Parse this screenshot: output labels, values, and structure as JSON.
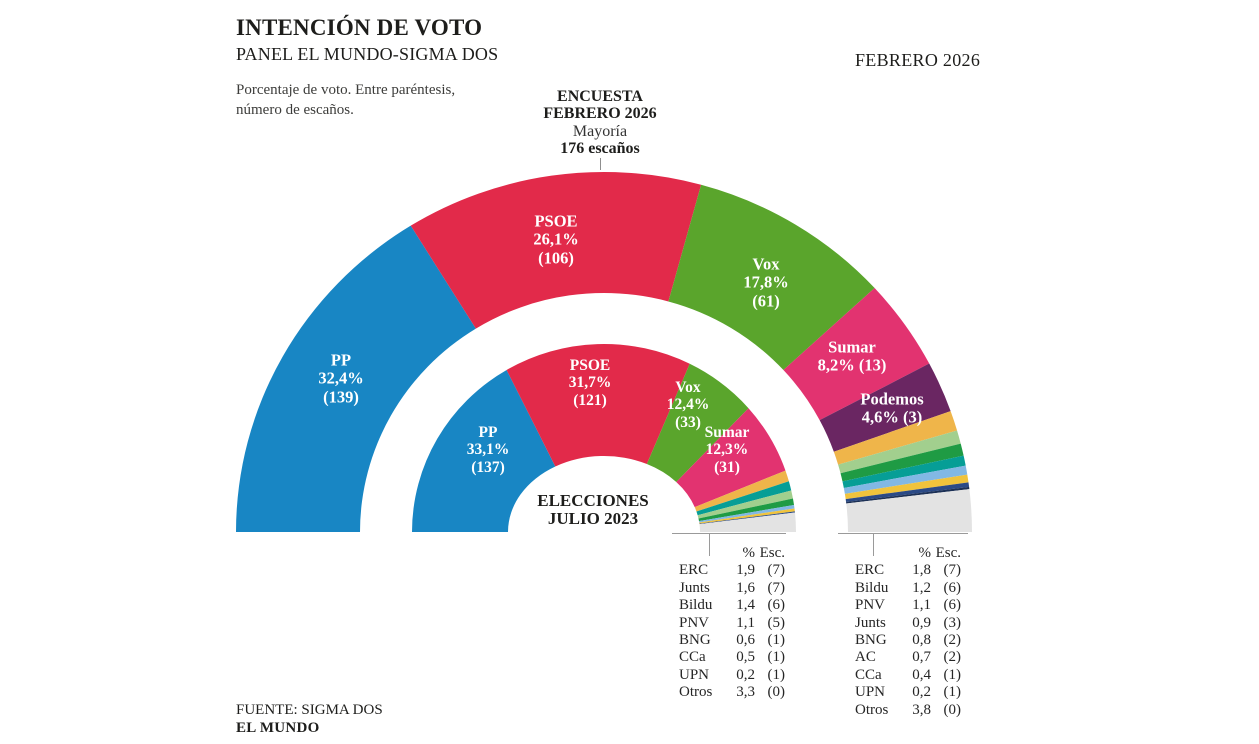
{
  "header": {
    "title": "INTENCIÓN DE VOTO",
    "subtitle": "PANEL EL MUNDO-SIGMA DOS",
    "date_label": "FEBRERO 2026",
    "note_line1": "Porcentaje de voto. Entre paréntesis,",
    "note_line2": "número de escaños."
  },
  "annotations": {
    "encuesta_line1": "ENCUESTA",
    "encuesta_line2": "FEBRERO 2026",
    "mayoria": "Mayoría",
    "escanos": "176 escaños",
    "elecciones_line1": "ELECCIONES",
    "elecciones_line2": "JULIO 2023"
  },
  "footer": {
    "source": "FUENTE: SIGMA DOS",
    "brand": "EL MUNDO"
  },
  "chart_data": {
    "type": "hemicycle-donut",
    "orientation": "semicircle-180deg",
    "value_unit": "% de voto (escaños entre paréntesis)",
    "majority_annotation": "Mayoría 176 escaños",
    "series": [
      {
        "name": "ENCUESTA FEBRERO 2026",
        "ring": "outer",
        "parties": [
          {
            "party": "PP",
            "pct": 32.4,
            "pct_label": "32,4%",
            "seats": 139,
            "seats_label": "(139)",
            "color": "#1886c4"
          },
          {
            "party": "PSOE",
            "pct": 26.1,
            "pct_label": "26,1%",
            "seats": 106,
            "seats_label": "(106)",
            "color": "#e22a4a"
          },
          {
            "party": "Vox",
            "pct": 17.8,
            "pct_label": "17,8%",
            "seats": 61,
            "seats_label": "(61)",
            "color": "#5aa52c"
          },
          {
            "party": "Sumar",
            "pct": 8.2,
            "pct_label": "8,2%",
            "seats": 13,
            "seats_label": "(13)",
            "color": "#e23370"
          },
          {
            "party": "Podemos",
            "pct": 4.6,
            "pct_label": "4,6%",
            "seats": 3,
            "seats_label": "(3)",
            "color": "#6a2662"
          },
          {
            "party": "ERC",
            "pct": 1.8,
            "pct_label": "1,8",
            "seats": 7,
            "seats_label": "(7)",
            "color": "#efb54a"
          },
          {
            "party": "Bildu",
            "pct": 1.2,
            "pct_label": "1,2",
            "seats": 6,
            "seats_label": "(6)",
            "color": "#a2cf8e"
          },
          {
            "party": "PNV",
            "pct": 1.1,
            "pct_label": "1,1",
            "seats": 6,
            "seats_label": "(6)",
            "color": "#1f9b44"
          },
          {
            "party": "Junts",
            "pct": 0.9,
            "pct_label": "0,9",
            "seats": 3,
            "seats_label": "(3)",
            "color": "#069e96"
          },
          {
            "party": "BNG",
            "pct": 0.8,
            "pct_label": "0,8",
            "seats": 2,
            "seats_label": "(2)",
            "color": "#82b8e4"
          },
          {
            "party": "AC",
            "pct": 0.7,
            "pct_label": "0,7",
            "seats": 2,
            "seats_label": "(2)",
            "color": "#f0c33c"
          },
          {
            "party": "CCa",
            "pct": 0.4,
            "pct_label": "0,4",
            "seats": 1,
            "seats_label": "(1)",
            "color": "#2b4a86"
          },
          {
            "party": "UPN",
            "pct": 0.2,
            "pct_label": "0,2",
            "seats": 1,
            "seats_label": "(1)",
            "color": "#1d3156"
          },
          {
            "party": "Otros",
            "pct": 3.8,
            "pct_label": "3,8",
            "seats": 0,
            "seats_label": "(0)",
            "color": "#e3e3e3"
          }
        ]
      },
      {
        "name": "ELECCIONES JULIO 2023",
        "ring": "inner",
        "parties": [
          {
            "party": "PP",
            "pct": 33.1,
            "pct_label": "33,1%",
            "seats": 137,
            "seats_label": "(137)",
            "color": "#1886c4"
          },
          {
            "party": "PSOE",
            "pct": 31.7,
            "pct_label": "31,7%",
            "seats": 121,
            "seats_label": "(121)",
            "color": "#e22a4a"
          },
          {
            "party": "Vox",
            "pct": 12.4,
            "pct_label": "12,4%",
            "seats": 33,
            "seats_label": "(33)",
            "color": "#5aa52c"
          },
          {
            "party": "Sumar",
            "pct": 12.3,
            "pct_label": "12,3%",
            "seats": 31,
            "seats_label": "(31)",
            "color": "#e23370"
          },
          {
            "party": "ERC",
            "pct": 1.9,
            "pct_label": "1,9",
            "seats": 7,
            "seats_label": "(7)",
            "color": "#efb54a"
          },
          {
            "party": "Junts",
            "pct": 1.6,
            "pct_label": "1,6",
            "seats": 7,
            "seats_label": "(7)",
            "color": "#069e96"
          },
          {
            "party": "Bildu",
            "pct": 1.4,
            "pct_label": "1,4",
            "seats": 6,
            "seats_label": "(6)",
            "color": "#a2cf8e"
          },
          {
            "party": "PNV",
            "pct": 1.1,
            "pct_label": "1,1",
            "seats": 5,
            "seats_label": "(5)",
            "color": "#1f9b44"
          },
          {
            "party": "BNG",
            "pct": 0.6,
            "pct_label": "0,6",
            "seats": 1,
            "seats_label": "(1)",
            "color": "#82b8e4"
          },
          {
            "party": "CCa",
            "pct": 0.5,
            "pct_label": "0,5",
            "seats": 1,
            "seats_label": "(1)",
            "color": "#f0c33c"
          },
          {
            "party": "UPN",
            "pct": 0.2,
            "pct_label": "0,2",
            "seats": 1,
            "seats_label": "(1)",
            "color": "#2b4a86"
          },
          {
            "party": "Otros",
            "pct": 3.3,
            "pct_label": "3,3",
            "seats": 0,
            "seats_label": "(0)",
            "color": "#e3e3e3"
          }
        ]
      }
    ],
    "legend_tables": [
      {
        "for_series": "ELECCIONES JULIO 2023",
        "col_pct": "%",
        "col_esc": "Esc.",
        "rows": [
          {
            "party": "ERC",
            "pct": "1,9",
            "esc": "(7)"
          },
          {
            "party": "Junts",
            "pct": "1,6",
            "esc": "(7)"
          },
          {
            "party": "Bildu",
            "pct": "1,4",
            "esc": "(6)"
          },
          {
            "party": "PNV",
            "pct": "1,1",
            "esc": "(5)"
          },
          {
            "party": "BNG",
            "pct": "0,6",
            "esc": "(1)"
          },
          {
            "party": "CCa",
            "pct": "0,5",
            "esc": "(1)"
          },
          {
            "party": "UPN",
            "pct": "0,2",
            "esc": "(1)"
          },
          {
            "party": "Otros",
            "pct": "3,3",
            "esc": "(0)"
          }
        ]
      },
      {
        "for_series": "ENCUESTA FEBRERO 2026",
        "col_pct": "%",
        "col_esc": "Esc.",
        "rows": [
          {
            "party": "ERC",
            "pct": "1,8",
            "esc": "(7)"
          },
          {
            "party": "Bildu",
            "pct": "1,2",
            "esc": "(6)"
          },
          {
            "party": "PNV",
            "pct": "1,1",
            "esc": "(6)"
          },
          {
            "party": "Junts",
            "pct": "0,9",
            "esc": "(3)"
          },
          {
            "party": "BNG",
            "pct": "0,8",
            "esc": "(2)"
          },
          {
            "party": "AC",
            "pct": "0,7",
            "esc": "(2)"
          },
          {
            "party": "CCa",
            "pct": "0,4",
            "esc": "(1)"
          },
          {
            "party": "UPN",
            "pct": "0,2",
            "esc": "(1)"
          },
          {
            "party": "Otros",
            "pct": "3,8",
            "esc": "(0)"
          }
        ]
      }
    ]
  }
}
